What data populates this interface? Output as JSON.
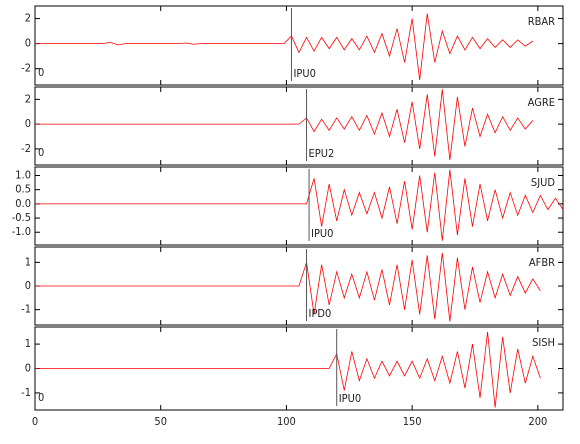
{
  "chart_data": {
    "type": "line",
    "x": [
      0,
      3,
      6,
      9,
      12,
      15,
      18,
      21,
      24,
      27,
      30,
      33,
      36,
      39,
      42,
      45,
      48,
      51,
      54,
      57,
      60,
      63,
      66,
      69,
      72,
      75,
      78,
      81,
      84,
      87,
      90,
      93,
      96,
      99,
      102,
      105,
      108,
      111,
      114,
      117,
      120,
      123,
      126,
      129,
      132,
      135,
      138,
      141,
      144,
      147,
      150,
      153,
      156,
      159,
      162,
      165,
      168,
      171,
      174,
      177,
      180,
      183,
      186,
      189,
      192,
      195,
      198,
      201,
      204,
      207,
      210
    ],
    "xlim": [
      0,
      210
    ],
    "xticks": [
      0,
      50,
      100,
      150,
      200
    ],
    "series": [
      {
        "name": "RBAR",
        "color": "#ff0000",
        "ylim": [
          -3.3,
          3
        ],
        "yticks": [
          -2,
          0,
          2
        ],
        "pick": 102,
        "pick_label": "IPU0",
        "origin_label": "0",
        "values": [
          0,
          0,
          0,
          0,
          0,
          0,
          0,
          0,
          0,
          0,
          0.1,
          -0.1,
          0,
          0,
          0,
          0,
          0,
          0,
          0,
          0,
          0.05,
          -0.05,
          0,
          0,
          0,
          0,
          0,
          0,
          0,
          0,
          0,
          0,
          0,
          0,
          0.6,
          -0.7,
          0.5,
          -0.6,
          0.5,
          -0.4,
          0.5,
          -0.5,
          0.4,
          -0.5,
          0.6,
          -0.7,
          0.8,
          -1.0,
          1.2,
          -1.5,
          2.0,
          -2.9,
          2.4,
          -1.5,
          1.0,
          -0.8,
          0.6,
          -0.5,
          0.5,
          -0.4,
          0.4,
          -0.3,
          0.3,
          -0.3,
          0.3,
          -0.2,
          0.2,
          null,
          null,
          null,
          null
        ]
      },
      {
        "name": "AGRE",
        "color": "#ff0000",
        "ylim": [
          -3.3,
          3
        ],
        "yticks": [
          -2,
          0,
          2
        ],
        "pick": 108,
        "pick_label": "EPU2",
        "origin_label": "0",
        "values": [
          0,
          0,
          0,
          0,
          0,
          0,
          0,
          0,
          0,
          0,
          0,
          0,
          0,
          0,
          0,
          0,
          0,
          0,
          0,
          0,
          0,
          0,
          0,
          0,
          0,
          0,
          0,
          0,
          0,
          0,
          0,
          0,
          0,
          0,
          0,
          0,
          0.5,
          -0.6,
          0.4,
          -0.5,
          0.5,
          -0.4,
          0.6,
          -0.5,
          0.7,
          -0.8,
          0.9,
          -1.0,
          1.2,
          -1.5,
          1.8,
          -2.0,
          2.4,
          -2.6,
          2.8,
          -2.9,
          2.2,
          -1.8,
          1.3,
          -1.0,
          0.8,
          -0.7,
          0.6,
          -0.5,
          0.5,
          -0.4,
          0.3,
          null,
          null,
          null,
          null
        ]
      },
      {
        "name": "SJUD",
        "color": "#ff0000",
        "ylim": [
          -1.45,
          1.3
        ],
        "yticks": [
          {
            "value": -1,
            "label": "-1.0"
          },
          -0.5,
          {
            "value": 0,
            "label": "0.0"
          },
          0.5,
          {
            "value": 1,
            "label": "1.0"
          }
        ],
        "pick": 109,
        "pick_label": "IPU0",
        "values": [
          0,
          0,
          0,
          0,
          0,
          0,
          0,
          0,
          0,
          0,
          0,
          0,
          0,
          0,
          0,
          0,
          0,
          0,
          0,
          0,
          0,
          0,
          0,
          0,
          0,
          0,
          0,
          0,
          0,
          0,
          0,
          0,
          0,
          0,
          0,
          0,
          0,
          0.9,
          -0.8,
          0.7,
          -0.6,
          0.5,
          -0.4,
          0.4,
          -0.35,
          0.4,
          -0.5,
          0.6,
          -0.7,
          0.8,
          -0.9,
          1.0,
          -1.0,
          1.1,
          -1.3,
          1.2,
          -1.1,
          0.9,
          -0.8,
          0.7,
          -0.6,
          0.5,
          -0.5,
          0.4,
          -0.4,
          0.3,
          -0.3,
          0.3,
          -0.2,
          0.2,
          -0.2
        ]
      },
      {
        "name": "AFBR",
        "color": "#ff0000",
        "ylim": [
          -1.65,
          1.65
        ],
        "yticks": [
          -1,
          0,
          1
        ],
        "pick": 108,
        "pick_label": "IPD0",
        "values": [
          0,
          0,
          0,
          0,
          0,
          0,
          0,
          0,
          0,
          0,
          0,
          0,
          0,
          0,
          0,
          0,
          0,
          0,
          0,
          0,
          0,
          0,
          0,
          0,
          0,
          0,
          0,
          0,
          0,
          0,
          0,
          0,
          0,
          0,
          0,
          0,
          1.0,
          -1.2,
          0.9,
          -0.8,
          0.6,
          -0.5,
          0.5,
          -0.5,
          0.6,
          -0.6,
          0.7,
          -0.8,
          0.9,
          -1.0,
          1.1,
          -1.2,
          1.3,
          -1.4,
          1.4,
          -1.5,
          1.2,
          -1.0,
          0.8,
          -0.7,
          0.6,
          -0.5,
          0.5,
          -0.4,
          0.4,
          -0.3,
          0.3,
          -0.2,
          null,
          null,
          null
        ]
      },
      {
        "name": "SISH",
        "color": "#ff0000",
        "ylim": [
          -1.7,
          1.7
        ],
        "yticks": [
          -1,
          0,
          1
        ],
        "pick": 120,
        "pick_label": "IPU0",
        "origin_label": "0",
        "values": [
          0,
          0,
          0,
          0,
          0,
          0,
          0,
          0,
          0,
          0,
          0,
          0,
          0,
          0,
          0,
          0,
          0,
          0,
          0,
          0,
          0,
          0,
          0,
          0,
          0,
          0,
          0,
          0,
          0,
          0,
          0,
          0,
          0,
          0,
          0,
          0,
          0,
          0,
          0,
          0,
          0.6,
          -0.9,
          0.7,
          -0.5,
          0.4,
          -0.4,
          0.3,
          -0.3,
          0.3,
          -0.3,
          0.3,
          -0.4,
          0.4,
          -0.5,
          0.5,
          -0.6,
          0.7,
          -0.8,
          1.0,
          -1.2,
          1.5,
          -1.6,
          1.3,
          -1.0,
          0.8,
          -0.6,
          0.5,
          -0.4,
          null,
          null,
          null
        ]
      }
    ]
  }
}
